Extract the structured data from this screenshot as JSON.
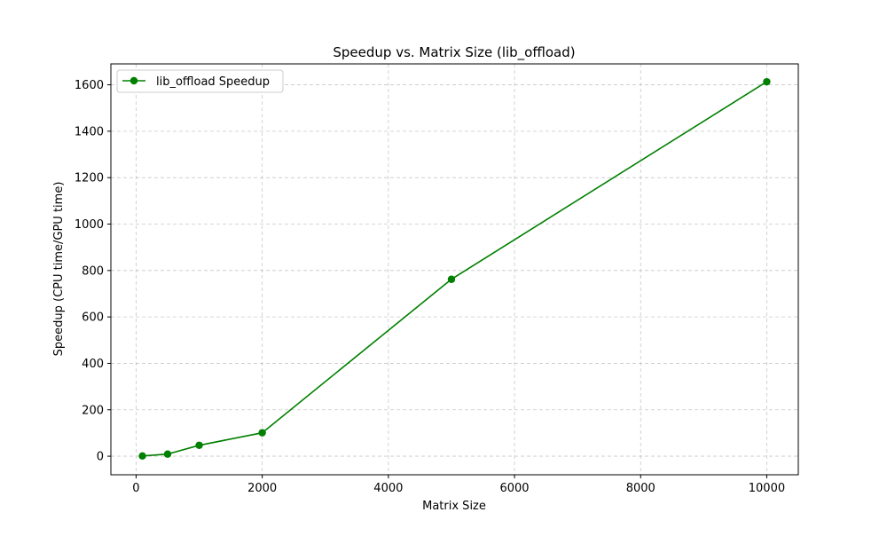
{
  "chart_data": {
    "type": "line",
    "title": "Speedup vs. Matrix Size (lib_offload)",
    "xlabel": "Matrix Size",
    "ylabel": "Speedup (CPU time/GPU time)",
    "xlim": [
      -400,
      10500
    ],
    "ylim": [
      -80,
      1690
    ],
    "x_ticks": [
      0,
      2000,
      4000,
      6000,
      8000,
      10000
    ],
    "y_ticks": [
      0,
      200,
      400,
      600,
      800,
      1000,
      1200,
      1400,
      1600
    ],
    "grid": true,
    "legend_position": "top-left",
    "series": [
      {
        "name": "lib_offload Speedup",
        "color": "#008000",
        "marker": "circle",
        "x": [
          100,
          500,
          1000,
          2000,
          5000,
          10000
        ],
        "y": [
          1,
          9,
          47,
          101,
          762,
          1613
        ]
      }
    ]
  }
}
